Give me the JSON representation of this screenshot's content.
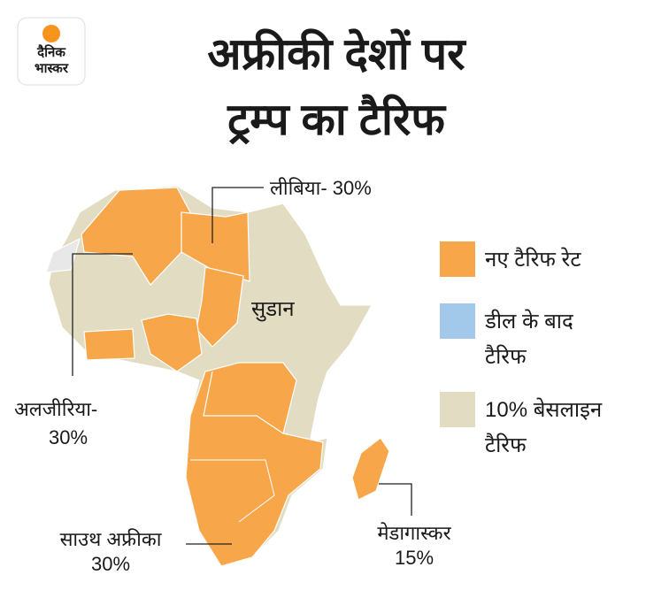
{
  "logo": {
    "line1": "दैनिक",
    "line2": "भास्कर"
  },
  "title": {
    "line1": "अफ्रीकी देशों पर",
    "line2": "ट्रम्प का टैरिफ"
  },
  "map_labels": {
    "libya": "लीबिया- 30%",
    "sudan": "सुडान",
    "algeria": {
      "line1": "अलजीरिया-",
      "line2": "30%"
    },
    "south_africa": {
      "line1": "साउथ अफ्रीका",
      "line2": "30%"
    },
    "madagascar": {
      "line1": "मेडागास्कर",
      "line2": "15%"
    }
  },
  "legend": [
    {
      "lines": [
        "नए टैरिफ रेट"
      ],
      "color": "#f8a64a"
    },
    {
      "lines": [
        "डील के बाद",
        "टैरिफ"
      ],
      "color": "#a3c9ea"
    },
    {
      "lines": [
        "10% बेसलाइन",
        "टैरिफ"
      ],
      "color": "#e2dcc3"
    }
  ]
}
